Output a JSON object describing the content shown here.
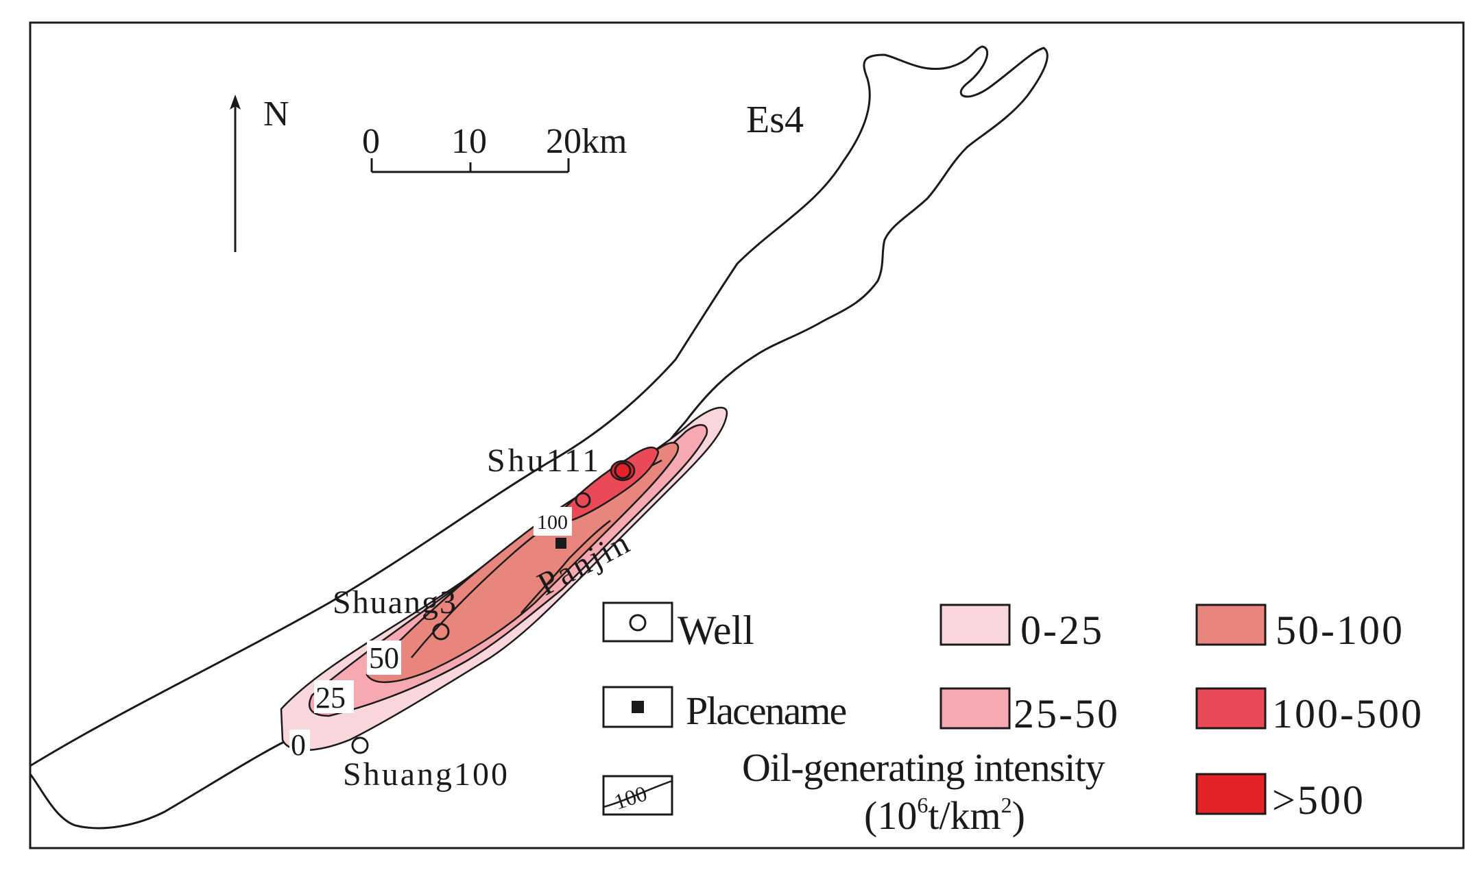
{
  "north_label": "N",
  "formation_label": "Es4",
  "scale": {
    "ticks": [
      "0",
      "10",
      "20km"
    ]
  },
  "wells": [
    "Shu111",
    "Shuang3",
    "Shuang100"
  ],
  "place": "Panjin",
  "contour_labels": [
    "0",
    "25",
    "50",
    "100"
  ],
  "legend": {
    "well": "Well",
    "placename": "Placename",
    "contour": "Oil-generating intensity",
    "contour_sample": "100",
    "unit_prefix": "(10",
    "unit_sup1": "6",
    "unit_mid": "t/km",
    "unit_sup2": "2",
    "unit_suffix": ")",
    "classes": [
      {
        "label": "0-25",
        "color": "#f9d6dc"
      },
      {
        "label": "25-50",
        "color": "#f6a9b1"
      },
      {
        "label": "50-100",
        "color": "#e8857c"
      },
      {
        "label": "100-500",
        "color": "#ea4a57"
      },
      {
        "label": ">500",
        "color": "#e3222a"
      }
    ]
  }
}
